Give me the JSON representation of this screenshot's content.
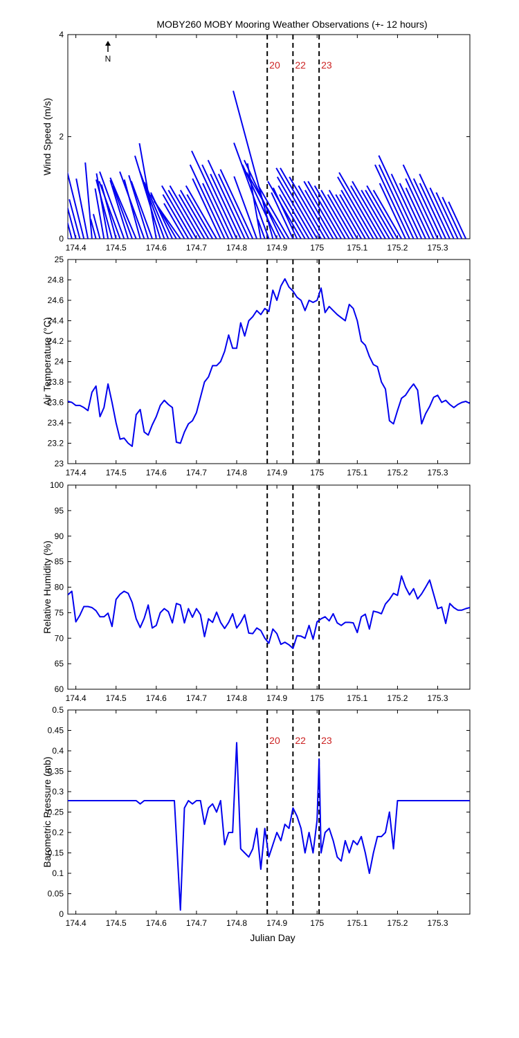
{
  "title": "MOBY260 MOBY Mooring Weather Observations (+- 12 hours)",
  "xlabel": "Julian Day",
  "north_label": "N",
  "colors": {
    "line": "#0000ee",
    "marker_text": "#cc2222",
    "axes": "#000000"
  },
  "markers": [
    {
      "label": "20",
      "x": 174.876
    },
    {
      "label": "22",
      "x": 174.94
    },
    {
      "label": "23",
      "x": 175.005
    }
  ],
  "chart_data": [
    {
      "type": "line",
      "subtype": "wind-stick-plot",
      "ylabel": "Wind Speed (m/s)",
      "xlim": [
        174.38,
        175.38
      ],
      "ylim": [
        0,
        4
      ],
      "x_ticks": [
        "174.4",
        "174.5",
        "174.6",
        "174.7",
        "174.8",
        "174.9",
        "175",
        "175.1",
        "175.2",
        "175.3"
      ],
      "y_ticks": [
        "0",
        "2",
        "4"
      ],
      "markers_labeled": true,
      "series": [
        {
          "x": [
            174.38,
            174.39,
            174.4,
            174.41,
            174.42,
            174.43,
            174.44,
            174.45,
            174.46,
            174.47,
            174.48,
            174.49,
            174.5,
            174.51,
            174.52,
            174.53,
            174.54,
            174.55,
            174.56,
            174.57,
            174.58,
            174.59,
            174.6,
            174.61,
            174.62,
            174.63,
            174.64,
            174.65,
            174.66,
            174.67,
            174.68,
            174.69,
            174.7,
            174.71,
            174.72,
            174.73,
            174.74,
            174.75,
            174.76,
            174.77,
            174.78,
            174.79,
            174.8,
            174.81,
            174.82,
            174.83,
            174.84,
            174.85,
            174.86,
            174.87,
            174.88,
            174.89,
            174.9,
            174.91,
            174.92,
            174.93,
            174.94,
            174.95,
            174.96,
            174.97,
            174.98,
            174.99,
            175.0,
            175.01,
            175.02,
            175.03,
            175.04,
            175.05,
            175.06,
            175.07,
            175.08,
            175.09,
            175.1,
            175.11,
            175.12,
            175.13,
            175.14,
            175.15,
            175.16,
            175.17,
            175.18,
            175.19,
            175.2,
            175.21,
            175.22,
            175.23,
            175.24,
            175.25,
            175.26,
            175.27,
            175.28,
            175.29,
            175.3,
            175.31,
            175.32,
            175.33,
            175.34,
            175.35,
            175.36,
            175.37
          ],
          "speed": [
            0.9,
            0.6,
            1.3,
            0.8,
            2.0,
            1.2,
            1.5,
            0.4,
            0.5,
            1.0,
            1.3,
            1.2,
            1.1,
            1.2,
            1.4,
            1.2,
            1.1,
            1.3,
            1.2,
            1.4,
            1.3,
            1.2,
            1.9,
            1.7,
            1.4,
            1.2,
            1.0,
            1.0,
            0.9,
            0.8,
            1.0,
            1.2,
            1.1,
            1.2,
            1.0,
            1.1,
            1.0,
            1.2,
            1.3,
            1.6,
            1.2,
            1.9,
            1.6,
            1.4,
            1.7,
            1.4,
            1.5,
            1.3,
            1.5,
            0.4,
            2.0,
            3.0,
            1.6,
            1.7,
            1.5,
            1.2,
            1.0,
            1.1,
            1.3,
            1.0,
            1.2,
            1.4,
            1.6,
            1.6,
            1.4,
            1.2,
            1.1,
            1.3,
            1.3,
            1.2,
            1.1,
            1.0,
            1.1,
            1.0,
            1.0,
            1.1,
            1.4,
            1.5,
            1.2,
            1.3,
            1.1,
            1.1,
            1.2,
            1.1,
            1.2,
            1.6,
            1.6,
            1.8,
            1.4,
            1.2,
            1.1,
            1.3,
            1.6,
            1.3,
            1.2,
            1.4,
            1.1,
            1.0,
            0.9,
            0.8
          ],
          "direction_deg": [
            345,
            345,
            345,
            345,
            346,
            349,
            355,
            345,
            345,
            350,
            350,
            345,
            345,
            340,
            340,
            343,
            340,
            337,
            345,
            340,
            343,
            340,
            350,
            343,
            340,
            337,
            335,
            330,
            325,
            330,
            330,
            330,
            330,
            330,
            330,
            330,
            330,
            330,
            335,
            335,
            335,
            335,
            335,
            335,
            335,
            335,
            335,
            340,
            350,
            340,
            340,
            345,
            335,
            335,
            330,
            330,
            335,
            335,
            330,
            330,
            330,
            330,
            330,
            330,
            330,
            330,
            330,
            330,
            330,
            330,
            330,
            330,
            330,
            330,
            330,
            330,
            330,
            330,
            330,
            330,
            330,
            330,
            330,
            330,
            335,
            335,
            335,
            335,
            335,
            335,
            335,
            335,
            335,
            335,
            335,
            335,
            335,
            335,
            335,
            335
          ]
        }
      ]
    },
    {
      "type": "line",
      "ylabel": "Air Temperature (°C)",
      "xlim": [
        174.38,
        175.38
      ],
      "ylim": [
        23,
        25
      ],
      "x_ticks": [
        "174.4",
        "174.5",
        "174.6",
        "174.7",
        "174.8",
        "174.9",
        "175",
        "175.1",
        "175.2",
        "175.3"
      ],
      "y_ticks": [
        "23",
        "23.2",
        "23.4",
        "23.6",
        "23.8",
        "24",
        "24.2",
        "24.4",
        "24.6",
        "24.8",
        "25"
      ],
      "series": [
        {
          "x": [
            174.38,
            174.39,
            174.4,
            174.41,
            174.42,
            174.43,
            174.44,
            174.45,
            174.46,
            174.47,
            174.48,
            174.49,
            174.5,
            174.51,
            174.52,
            174.53,
            174.54,
            174.55,
            174.56,
            174.57,
            174.58,
            174.59,
            174.6,
            174.61,
            174.62,
            174.63,
            174.64,
            174.65,
            174.66,
            174.67,
            174.68,
            174.69,
            174.7,
            174.71,
            174.72,
            174.73,
            174.74,
            174.75,
            174.76,
            174.77,
            174.78,
            174.79,
            174.8,
            174.81,
            174.82,
            174.83,
            174.84,
            174.85,
            174.86,
            174.87,
            174.88,
            174.89,
            174.9,
            174.91,
            174.92,
            174.93,
            174.94,
            174.95,
            174.96,
            174.97,
            174.98,
            174.99,
            175.0,
            175.01,
            175.02,
            175.03,
            175.04,
            175.05,
            175.06,
            175.07,
            175.08,
            175.09,
            175.1,
            175.11,
            175.12,
            175.13,
            175.14,
            175.15,
            175.16,
            175.17,
            175.18,
            175.19,
            175.2,
            175.21,
            175.22,
            175.23,
            175.24,
            175.25,
            175.26,
            175.27,
            175.28,
            175.29,
            175.3,
            175.31,
            175.32,
            175.33,
            175.34,
            175.35,
            175.36,
            175.37,
            175.38
          ],
          "y": [
            23.61,
            23.6,
            23.57,
            23.57,
            23.55,
            23.52,
            23.7,
            23.76,
            23.46,
            23.55,
            23.78,
            23.6,
            23.4,
            23.24,
            23.25,
            23.2,
            23.17,
            23.48,
            23.53,
            23.31,
            23.28,
            23.38,
            23.46,
            23.57,
            23.62,
            23.58,
            23.55,
            23.21,
            23.2,
            23.31,
            23.39,
            23.42,
            23.5,
            23.65,
            23.8,
            23.85,
            23.96,
            23.96,
            24.0,
            24.1,
            24.26,
            24.13,
            24.13,
            24.38,
            24.25,
            24.4,
            24.44,
            24.5,
            24.46,
            24.52,
            24.49,
            24.7,
            24.6,
            24.74,
            24.81,
            24.73,
            24.69,
            24.63,
            24.6,
            24.5,
            24.6,
            24.58,
            24.6,
            24.72,
            24.48,
            24.54,
            24.5,
            24.46,
            24.43,
            24.4,
            24.56,
            24.52,
            24.4,
            24.2,
            24.16,
            24.05,
            23.97,
            23.95,
            23.8,
            23.73,
            23.42,
            23.39,
            23.52,
            23.64,
            23.67,
            23.73,
            23.78,
            23.72,
            23.39,
            23.49,
            23.56,
            23.65,
            23.67,
            23.6,
            23.62,
            23.58,
            23.55,
            23.58,
            23.6,
            23.61,
            23.59
          ]
        }
      ]
    },
    {
      "type": "line",
      "ylabel": "Relative Humidity (%)",
      "xlim": [
        174.38,
        175.38
      ],
      "ylim": [
        60,
        100
      ],
      "x_ticks": [
        "174.4",
        "174.5",
        "174.6",
        "174.7",
        "174.8",
        "174.9",
        "175",
        "175.1",
        "175.2",
        "175.3"
      ],
      "y_ticks": [
        "60",
        "65",
        "70",
        "75",
        "80",
        "85",
        "90",
        "95",
        "100"
      ],
      "series": [
        {
          "x": [
            174.38,
            174.39,
            174.4,
            174.41,
            174.42,
            174.43,
            174.44,
            174.45,
            174.46,
            174.47,
            174.48,
            174.49,
            174.5,
            174.51,
            174.52,
            174.53,
            174.54,
            174.55,
            174.56,
            174.57,
            174.58,
            174.59,
            174.6,
            174.61,
            174.62,
            174.63,
            174.64,
            174.65,
            174.66,
            174.67,
            174.68,
            174.69,
            174.7,
            174.71,
            174.72,
            174.73,
            174.74,
            174.75,
            174.76,
            174.77,
            174.78,
            174.79,
            174.8,
            174.81,
            174.82,
            174.83,
            174.84,
            174.85,
            174.86,
            174.87,
            174.88,
            174.89,
            174.9,
            174.91,
            174.92,
            174.93,
            174.94,
            174.95,
            174.96,
            174.97,
            174.98,
            174.99,
            175.0,
            175.01,
            175.02,
            175.03,
            175.04,
            175.05,
            175.06,
            175.07,
            175.08,
            175.09,
            175.1,
            175.11,
            175.12,
            175.13,
            175.14,
            175.15,
            175.16,
            175.17,
            175.18,
            175.19,
            175.2,
            175.21,
            175.22,
            175.23,
            175.24,
            175.25,
            175.26,
            175.27,
            175.28,
            175.29,
            175.3,
            175.31,
            175.32,
            175.33,
            175.34,
            175.35,
            175.36,
            175.37,
            175.38
          ],
          "y": [
            78.5,
            79.2,
            73.2,
            74.5,
            76.2,
            76.2,
            76.0,
            75.4,
            74.2,
            74.2,
            74.9,
            72.3,
            77.6,
            78.6,
            79.2,
            78.8,
            77.0,
            73.8,
            72.1,
            73.9,
            76.5,
            72.0,
            72.5,
            75.0,
            75.8,
            75.2,
            73.0,
            76.8,
            76.5,
            73.0,
            75.8,
            74.1,
            75.8,
            74.6,
            70.3,
            73.8,
            73.1,
            75.1,
            73.1,
            71.9,
            73.1,
            74.8,
            72.0,
            73.1,
            74.6,
            71.0,
            70.9,
            72.0,
            71.5,
            70.0,
            69.0,
            71.8,
            70.9,
            68.8,
            69.2,
            68.7,
            68.0,
            70.5,
            70.4,
            70.0,
            72.5,
            69.8,
            73.2,
            73.8,
            74.2,
            73.4,
            74.8,
            73.0,
            72.5,
            73.1,
            73.1,
            73.0,
            71.1,
            74.2,
            74.7,
            71.8,
            75.3,
            75.1,
            74.8,
            76.7,
            77.6,
            78.8,
            78.4,
            82.2,
            80.0,
            78.5,
            79.7,
            77.7,
            78.7,
            80.0,
            81.4,
            78.6,
            75.8,
            76.1,
            72.9,
            76.8,
            76.0,
            75.5,
            75.5,
            75.8,
            76.0
          ]
        }
      ]
    },
    {
      "type": "line",
      "ylabel": "Barometric Pressure (mb)",
      "xlim": [
        174.38,
        175.38
      ],
      "ylim": [
        0,
        0.5
      ],
      "x_ticks": [
        "174.4",
        "174.5",
        "174.6",
        "174.7",
        "174.8",
        "174.9",
        "175",
        "175.1",
        "175.2",
        "175.3"
      ],
      "y_ticks": [
        "0",
        "0.05",
        "0.1",
        "0.15",
        "0.2",
        "0.25",
        "0.3",
        "0.35",
        "0.4",
        "0.45",
        "0.5"
      ],
      "markers_labeled": true,
      "series": [
        {
          "x": [
            174.38,
            174.4,
            174.45,
            174.5,
            174.55,
            174.56,
            174.57,
            174.58,
            174.6,
            174.62,
            174.63,
            174.645,
            174.66,
            174.67,
            174.68,
            174.69,
            174.7,
            174.71,
            174.72,
            174.73,
            174.74,
            174.75,
            174.76,
            174.77,
            174.78,
            174.79,
            174.8,
            174.81,
            174.82,
            174.83,
            174.84,
            174.85,
            174.86,
            174.87,
            174.88,
            174.89,
            174.9,
            174.91,
            174.92,
            174.93,
            174.94,
            174.95,
            174.96,
            174.97,
            174.98,
            174.99,
            175.0,
            175.005,
            175.01,
            175.02,
            175.03,
            175.04,
            175.05,
            175.06,
            175.07,
            175.08,
            175.09,
            175.1,
            175.11,
            175.12,
            175.13,
            175.14,
            175.15,
            175.16,
            175.17,
            175.18,
            175.19,
            175.2,
            175.21,
            175.22,
            175.25,
            175.3,
            175.35,
            175.38
          ],
          "y": [
            0.278,
            0.278,
            0.278,
            0.278,
            0.278,
            0.27,
            0.278,
            0.278,
            0.278,
            0.278,
            0.278,
            0.278,
            0.01,
            0.26,
            0.278,
            0.27,
            0.278,
            0.278,
            0.22,
            0.26,
            0.27,
            0.25,
            0.278,
            0.17,
            0.2,
            0.2,
            0.42,
            0.16,
            0.15,
            0.14,
            0.16,
            0.21,
            0.11,
            0.21,
            0.14,
            0.17,
            0.2,
            0.18,
            0.22,
            0.21,
            0.26,
            0.24,
            0.21,
            0.15,
            0.2,
            0.15,
            0.23,
            0.38,
            0.15,
            0.2,
            0.21,
            0.18,
            0.14,
            0.13,
            0.18,
            0.15,
            0.18,
            0.17,
            0.19,
            0.15,
            0.1,
            0.15,
            0.19,
            0.19,
            0.2,
            0.25,
            0.16,
            0.278,
            0.278,
            0.278,
            0.278,
            0.278,
            0.278,
            0.278
          ]
        }
      ]
    }
  ]
}
